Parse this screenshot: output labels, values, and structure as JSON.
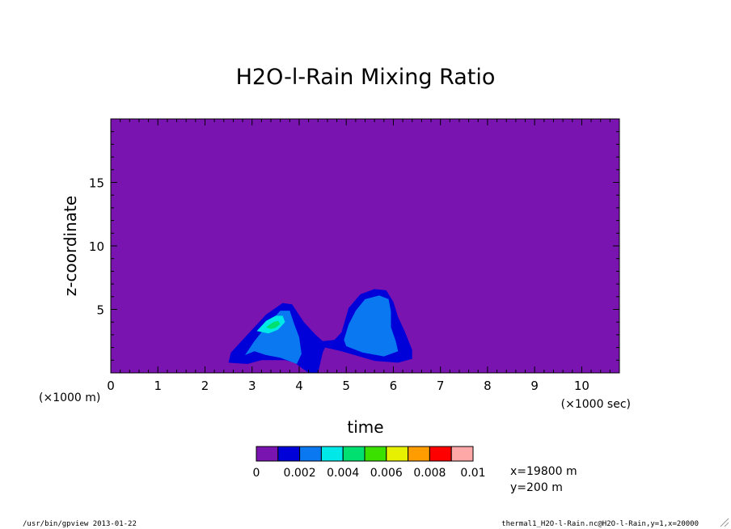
{
  "chart_data": {
    "type": "heatmap",
    "title": "H2O-l-Rain Mixing Ratio",
    "xlabel": "time",
    "ylabel": "z-coordinate",
    "x_unit": "(×1000 sec)",
    "y_unit": "(×1000 m)",
    "xlim": [
      0,
      10.8
    ],
    "ylim": [
      0,
      20
    ],
    "x_ticks": [
      "0",
      "1",
      "2",
      "3",
      "4",
      "5",
      "6",
      "7",
      "8",
      "9",
      "10"
    ],
    "y_ticks": [
      "5",
      "10",
      "15"
    ],
    "grid": false,
    "colorbar": {
      "levels": [
        0,
        0.001,
        0.002,
        0.003,
        0.004,
        0.005,
        0.006,
        0.007,
        0.008,
        0.009,
        0.01
      ],
      "tick_labels": [
        "0",
        "0.002",
        "0.004",
        "0.006",
        "0.008",
        "0.01"
      ],
      "colors": [
        "#7a14b0",
        "#0000d8",
        "#0a78f0",
        "#00e8e8",
        "#00e070",
        "#3ce000",
        "#e6f000",
        "#ff9c00",
        "#ff0000",
        "#ffa8a8"
      ]
    },
    "background_color": "#7a14b0",
    "contours": [
      {
        "level_index": 1,
        "color": "#0000d8",
        "points": [
          [
            2.5,
            0.8
          ],
          [
            2.55,
            1.6
          ],
          [
            2.9,
            3.0
          ],
          [
            3.3,
            4.6
          ],
          [
            3.65,
            5.5
          ],
          [
            3.85,
            5.4
          ],
          [
            4.1,
            4.0
          ],
          [
            4.35,
            3.0
          ],
          [
            4.5,
            2.5
          ],
          [
            4.75,
            2.6
          ],
          [
            4.9,
            3.2
          ],
          [
            5.05,
            5.1
          ],
          [
            5.3,
            6.2
          ],
          [
            5.6,
            6.6
          ],
          [
            5.85,
            6.5
          ],
          [
            6.0,
            5.6
          ],
          [
            6.1,
            4.4
          ],
          [
            6.25,
            3.2
          ],
          [
            6.4,
            1.8
          ],
          [
            6.4,
            1.1
          ],
          [
            6.1,
            0.8
          ],
          [
            5.6,
            0.95
          ],
          [
            4.9,
            1.7
          ],
          [
            4.55,
            2.0
          ],
          [
            4.5,
            1.6
          ],
          [
            4.4,
            0.0
          ],
          [
            4.2,
            0.0
          ],
          [
            4.05,
            0.4
          ],
          [
            3.9,
            0.8
          ],
          [
            3.7,
            1.0
          ],
          [
            3.2,
            1.0
          ],
          [
            2.9,
            0.7
          ]
        ]
      },
      {
        "level_index": 2,
        "color": "#0a78f0",
        "points": [
          [
            2.85,
            1.4
          ],
          [
            3.05,
            2.5
          ],
          [
            3.35,
            3.9
          ],
          [
            3.6,
            4.9
          ],
          [
            3.8,
            4.9
          ],
          [
            3.9,
            3.8
          ],
          [
            4.0,
            2.8
          ],
          [
            4.05,
            1.5
          ],
          [
            3.95,
            0.7
          ],
          [
            3.6,
            1.2
          ],
          [
            3.3,
            1.4
          ],
          [
            3.05,
            1.7
          ]
        ]
      },
      {
        "level_index": 2,
        "color": "#0a78f0",
        "points": [
          [
            4.95,
            2.6
          ],
          [
            5.05,
            3.8
          ],
          [
            5.2,
            4.9
          ],
          [
            5.4,
            5.8
          ],
          [
            5.7,
            6.1
          ],
          [
            5.9,
            5.8
          ],
          [
            5.95,
            4.8
          ],
          [
            5.95,
            3.6
          ],
          [
            6.05,
            2.5
          ],
          [
            6.1,
            1.7
          ],
          [
            5.8,
            1.3
          ],
          [
            5.35,
            1.6
          ],
          [
            5.0,
            2.1
          ]
        ]
      },
      {
        "level_index": 3,
        "color": "#00e8e8",
        "points": [
          [
            3.1,
            3.3
          ],
          [
            3.3,
            4.1
          ],
          [
            3.5,
            4.5
          ],
          [
            3.65,
            4.5
          ],
          [
            3.7,
            4.0
          ],
          [
            3.55,
            3.4
          ],
          [
            3.35,
            3.1
          ]
        ]
      },
      {
        "level_index": 4,
        "color": "#00e070",
        "points": [
          [
            3.3,
            3.6
          ],
          [
            3.45,
            4.0
          ],
          [
            3.55,
            4.1
          ],
          [
            3.6,
            3.85
          ],
          [
            3.5,
            3.55
          ],
          [
            3.4,
            3.45
          ]
        ]
      }
    ],
    "annotations": [
      "x=19800 m",
      "y=200 m"
    ]
  },
  "footer": {
    "left": "/usr/bin/gpview  2013-01-22",
    "right": "thermal1_H2O-l-Rain.nc@H2O-l-Rain,y=1,x=20000"
  }
}
